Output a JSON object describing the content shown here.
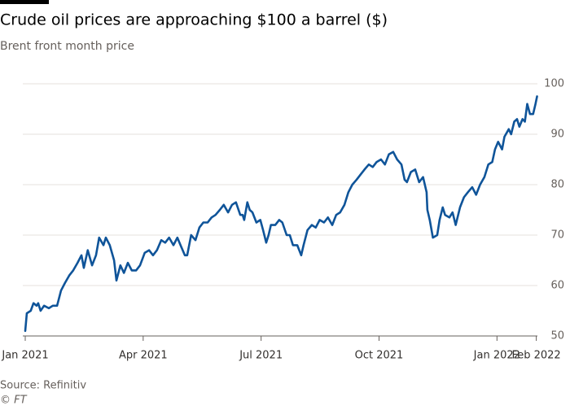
{
  "chart_data": {
    "type": "line",
    "title": "Crude oil prices are approaching $100 a barrel ($)",
    "subtitle": "Brent front month price",
    "source": "Source: Refinitiv",
    "credit": "© FT",
    "xlim": [
      0,
      13.05
    ],
    "xticks": [
      {
        "value": 0,
        "label": "Jan 2021"
      },
      {
        "value": 3,
        "label": "Apr 2021"
      },
      {
        "value": 6,
        "label": "Jul 2021"
      },
      {
        "value": 9,
        "label": "Oct 2021"
      },
      {
        "value": 12,
        "label": "Jan 2022"
      },
      {
        "value": 13,
        "label": "Feb 2022"
      }
    ],
    "ylim": [
      50,
      100
    ],
    "yticks": [
      50,
      60,
      70,
      80,
      90,
      100
    ],
    "grid": true,
    "series": [
      {
        "name": "Brent front month price",
        "color": "#0f5499",
        "x": [
          0,
          0.04,
          0.14,
          0.21,
          0.29,
          0.33,
          0.39,
          0.48,
          0.6,
          0.7,
          0.81,
          0.91,
          1.01,
          1.12,
          1.22,
          1.33,
          1.43,
          1.49,
          1.59,
          1.7,
          1.8,
          1.88,
          1.99,
          2.05,
          2.15,
          2.26,
          2.32,
          2.42,
          2.51,
          2.61,
          2.71,
          2.82,
          2.92,
          3.04,
          3.15,
          3.25,
          3.35,
          3.46,
          3.56,
          3.66,
          3.77,
          3.87,
          3.95,
          4.06,
          4.12,
          4.22,
          4.33,
          4.43,
          4.53,
          4.64,
          4.74,
          4.84,
          4.95,
          5.05,
          5.16,
          5.26,
          5.36,
          5.47,
          5.53,
          5.57,
          5.65,
          5.71,
          5.78,
          5.88,
          5.98,
          6.05,
          6.13,
          6.19,
          6.25,
          6.36,
          6.46,
          6.54,
          6.65,
          6.73,
          6.81,
          6.92,
          7.02,
          7.08,
          7.18,
          7.29,
          7.39,
          7.49,
          7.6,
          7.7,
          7.81,
          7.91,
          8.01,
          8.12,
          8.22,
          8.32,
          8.43,
          8.53,
          8.63,
          8.74,
          8.84,
          8.94,
          9.05,
          9.15,
          9.25,
          9.36,
          9.46,
          9.57,
          9.65,
          9.71,
          9.81,
          9.92,
          10.02,
          10.12,
          10.21,
          10.23,
          10.29,
          10.37,
          10.48,
          10.54,
          10.62,
          10.68,
          10.79,
          10.87,
          10.95,
          11.06,
          11.16,
          11.26,
          11.37,
          11.47,
          11.57,
          11.68,
          11.78,
          11.88,
          11.95,
          12.03,
          12.13,
          12.19,
          12.3,
          12.36,
          12.44,
          12.51,
          12.57,
          12.65,
          12.71,
          12.77,
          12.84,
          12.92,
          12.98,
          13.02
        ],
        "values": [
          51,
          54.5,
          55,
          56.5,
          56,
          56.5,
          55,
          56,
          55.5,
          56,
          56,
          59,
          60.5,
          62,
          63,
          64.5,
          66,
          63.5,
          67,
          64,
          66,
          69.5,
          68,
          69.5,
          68,
          65,
          61,
          64,
          62.5,
          64.5,
          63,
          63,
          64,
          66.5,
          67,
          66,
          67,
          69,
          68.5,
          69.5,
          68,
          69.5,
          68,
          66,
          66,
          70,
          69,
          71.5,
          72.5,
          72.5,
          73.5,
          74,
          75,
          76,
          74.5,
          76,
          76.5,
          74,
          74,
          73,
          76.5,
          75,
          74.5,
          72.5,
          73,
          71,
          68.5,
          70,
          72,
          72,
          73,
          72.5,
          70,
          70,
          68,
          68,
          66,
          68,
          71,
          72,
          71.5,
          73,
          72.5,
          73.5,
          72,
          74,
          74.5,
          76,
          78.5,
          80,
          81,
          82,
          83,
          84,
          83.5,
          84.5,
          85,
          84,
          86,
          86.5,
          85,
          84,
          81,
          80.5,
          82.5,
          83,
          80.5,
          81.5,
          78.5,
          75,
          73,
          69.5,
          70,
          73,
          75.5,
          74,
          73.5,
          74.5,
          72,
          75.5,
          77.5,
          78.5,
          79.5,
          78,
          80,
          81.5,
          84,
          84.5,
          87,
          88.5,
          87,
          89.5,
          91,
          90,
          92.5,
          93,
          91.5,
          93,
          92.5,
          96,
          94,
          94,
          96,
          97.5
        ]
      }
    ]
  }
}
